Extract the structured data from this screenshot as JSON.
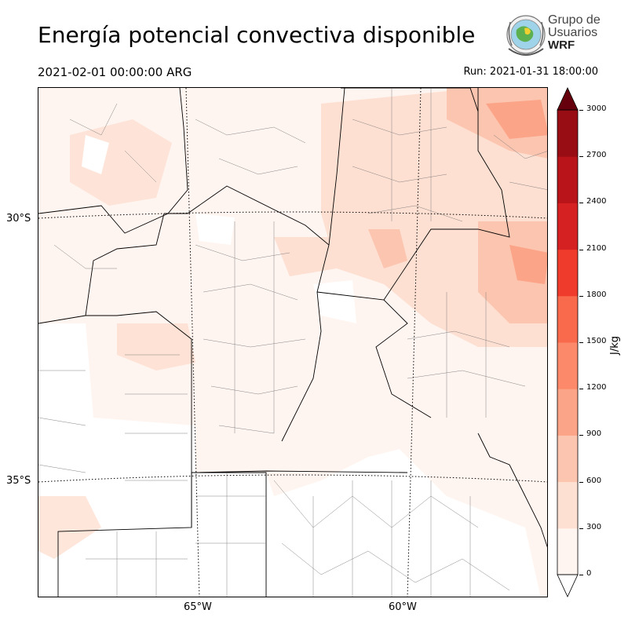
{
  "title": "Energía potencial convectiva disponible",
  "valid_time": "2021-02-01 00:00:00 ARG",
  "run_time": "Run: 2021-01-31 18:00:00",
  "logo": {
    "line1": "Grupo de",
    "line2": "Usuarios",
    "line3": "WRF",
    "icon": "globe-seal-icon"
  },
  "map": {
    "latitude_labels": [
      "30°S",
      "35°S"
    ],
    "longitude_labels": [
      "65°W",
      "60°W"
    ]
  },
  "colorbar": {
    "units": "J/kg",
    "ticks": [
      "0",
      "300",
      "600",
      "900",
      "1200",
      "1500",
      "1800",
      "2100",
      "2400",
      "2700",
      "3000"
    ],
    "colors": [
      "#fff5f0",
      "#fee0d2",
      "#fcc5b0",
      "#fca487",
      "#fc8a6a",
      "#f96a4c",
      "#ef3b2c",
      "#d52121",
      "#b81419",
      "#980c13",
      "#67000d"
    ],
    "extend": "both"
  }
}
